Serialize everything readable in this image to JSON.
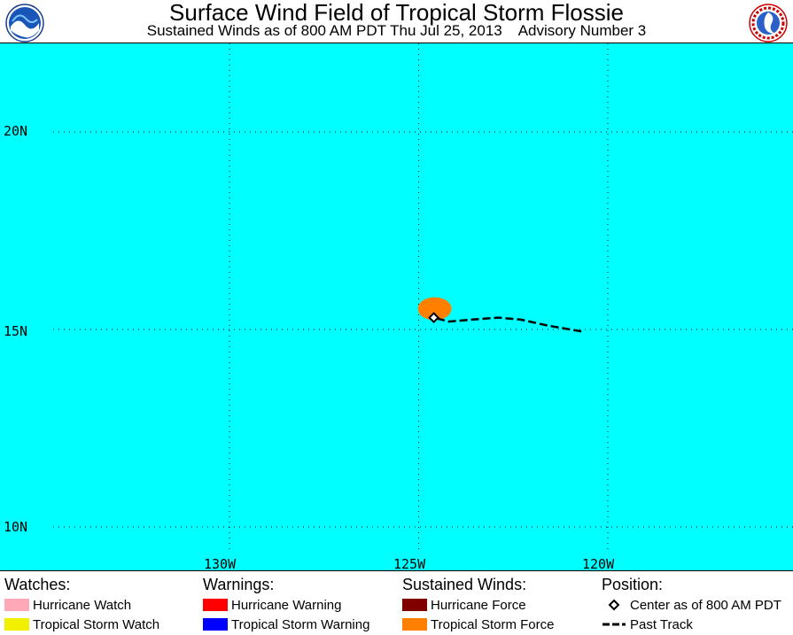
{
  "header": {
    "title": "Surface Wind Field of Tropical Storm Flossie",
    "subtitle": "Sustained Winds as of 800 AM PDT Thu Jul 25, 2013    Advisory Number 3",
    "left_logo": "noaa-logo",
    "right_logo": "national-weather-service-logo"
  },
  "map": {
    "ocean_color": "#00ffff",
    "lat_labels": [
      "20N",
      "15N",
      "10N"
    ],
    "lon_labels": [
      "130W",
      "125W",
      "120W"
    ],
    "storm_center": {
      "lat": 15.3,
      "lon": -124.6
    },
    "tropical_storm_force_area": {
      "color": "#ff8000"
    },
    "past_track": [
      {
        "lat": 14.95,
        "lon": -120.7
      },
      {
        "lat": 15.1,
        "lon": -121.6
      },
      {
        "lat": 15.25,
        "lon": -122.3
      },
      {
        "lat": 15.3,
        "lon": -122.9
      },
      {
        "lat": 15.25,
        "lon": -123.6
      },
      {
        "lat": 15.2,
        "lon": -124.2
      },
      {
        "lat": 15.3,
        "lon": -124.6
      }
    ]
  },
  "legend": {
    "watches": {
      "heading": "Watches:",
      "items": [
        {
          "label": "Hurricane Watch",
          "color": "#ffa8b8"
        },
        {
          "label": "Tropical Storm Watch",
          "color": "#f0f000"
        }
      ]
    },
    "warnings": {
      "heading": "Warnings:",
      "items": [
        {
          "label": "Hurricane Warning",
          "color": "#ff0000"
        },
        {
          "label": "Tropical Storm Warning",
          "color": "#0000ff"
        }
      ]
    },
    "sustained_winds": {
      "heading": "Sustained Winds:",
      "items": [
        {
          "label": "Hurricane Force",
          "color": "#800000"
        },
        {
          "label": "Tropical Storm Force",
          "color": "#ff8000"
        }
      ]
    },
    "position": {
      "heading": "Position:",
      "items": [
        {
          "label": "Center as of 800 AM PDT",
          "icon": "diamond-icon"
        },
        {
          "label": "Past Track",
          "icon": "dashed-line-icon"
        }
      ]
    }
  }
}
